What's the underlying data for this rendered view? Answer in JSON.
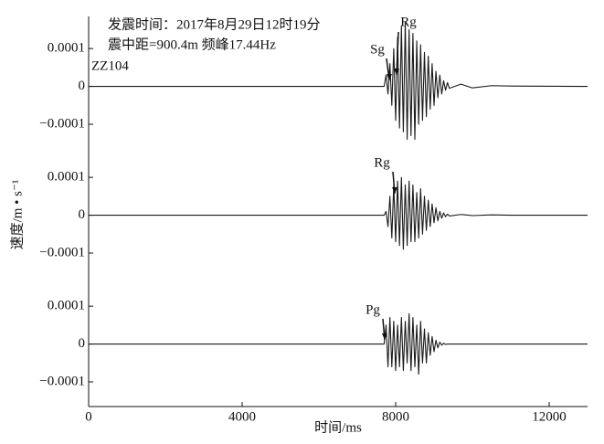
{
  "chart_data": {
    "type": "line",
    "title": "发震时间：2017年8月29日12时19分",
    "subtitle": "震中距=900.4m 频峰17.44Hz",
    "station": "ZZ104",
    "xlabel": "时间/ms",
    "ylabel": "速度/m • s⁻¹",
    "xlim": [
      0,
      13000
    ],
    "xticks": [
      0,
      4000,
      8000,
      12000
    ],
    "color": "#1a1a1a",
    "x": [
      0,
      6500,
      7700,
      7750,
      7800,
      7850,
      7900,
      7950,
      8000,
      8050,
      8100,
      8150,
      8200,
      8250,
      8300,
      8350,
      8400,
      8450,
      8500,
      8550,
      8600,
      8650,
      8700,
      8750,
      8800,
      8850,
      8900,
      8950,
      9000,
      9050,
      9100,
      9150,
      9200,
      9250,
      9300,
      9350,
      9400,
      9700,
      10000,
      10500,
      11000,
      13000
    ],
    "panels": [
      {
        "ylim": [
          -0.00017,
          0.00018
        ],
        "yticks": [
          0.0001,
          0,
          {
            "value": -0.0001,
            "label": "−0.0001"
          }
        ],
        "annotations": [
          "Sg",
          "Rg"
        ],
        "values": [
          0,
          0,
          0,
          3e-05,
          -2e-05,
          6e-05,
          -5e-05,
          0.0001,
          -9e-05,
          0.00013,
          -0.00011,
          0.00016,
          -0.00012,
          0.00017,
          -0.00014,
          0.00015,
          -0.00013,
          0.00014,
          -0.00014,
          0.00012,
          -0.0001,
          0.00011,
          -9e-05,
          9e-05,
          -8e-05,
          8e-05,
          -6e-05,
          6e-05,
          -5e-05,
          4e-05,
          -3e-05,
          3e-05,
          -2e-05,
          1.5e-05,
          -1e-05,
          1e-05,
          -5e-06,
          6e-06,
          -4e-06,
          2e-06,
          1e-06,
          0
        ]
      },
      {
        "ylim": [
          -0.00017,
          0.00018
        ],
        "yticks": [
          0.0001,
          0,
          {
            "value": -0.0001,
            "label": "−0.0001"
          }
        ],
        "annotations": [
          "Rg"
        ],
        "values": [
          0,
          0,
          0,
          1e-05,
          -3e-05,
          5e-05,
          -6e-05,
          8e-05,
          -7e-05,
          9e-05,
          -8e-05,
          0.0001,
          -9e-05,
          8e-05,
          -8e-05,
          9e-05,
          -7e-05,
          8e-05,
          -7e-05,
          6e-05,
          -6e-05,
          7e-05,
          -5e-05,
          5e-05,
          -4e-05,
          4e-05,
          -3e-05,
          3e-05,
          -2e-05,
          2e-05,
          -1.5e-05,
          1e-05,
          -8e-06,
          6e-06,
          -4e-06,
          3e-06,
          -2e-06,
          2e-06,
          -1e-06,
          1e-06,
          0,
          0
        ]
      },
      {
        "ylim": [
          -0.00017,
          0.00018
        ],
        "yticks": [
          0.0001,
          0,
          {
            "value": -0.0001,
            "label": "−0.0001"
          }
        ],
        "annotations": [
          "Pg"
        ],
        "values": [
          0,
          0,
          0,
          5e-05,
          -6e-05,
          7e-05,
          -6e-05,
          6e-05,
          -7e-05,
          5e-05,
          -6e-05,
          7e-05,
          -7e-05,
          6e-05,
          -5e-05,
          8e-05,
          -7e-05,
          7e-05,
          -6e-05,
          5e-05,
          -8e-05,
          6e-05,
          -5e-05,
          4e-05,
          -5e-05,
          3e-05,
          -3e-05,
          2e-05,
          -2e-05,
          1e-05,
          -1e-05,
          5e-06,
          -3e-06,
          2e-06,
          -1e-06,
          0,
          0,
          0,
          0,
          0,
          0,
          0
        ]
      }
    ]
  }
}
